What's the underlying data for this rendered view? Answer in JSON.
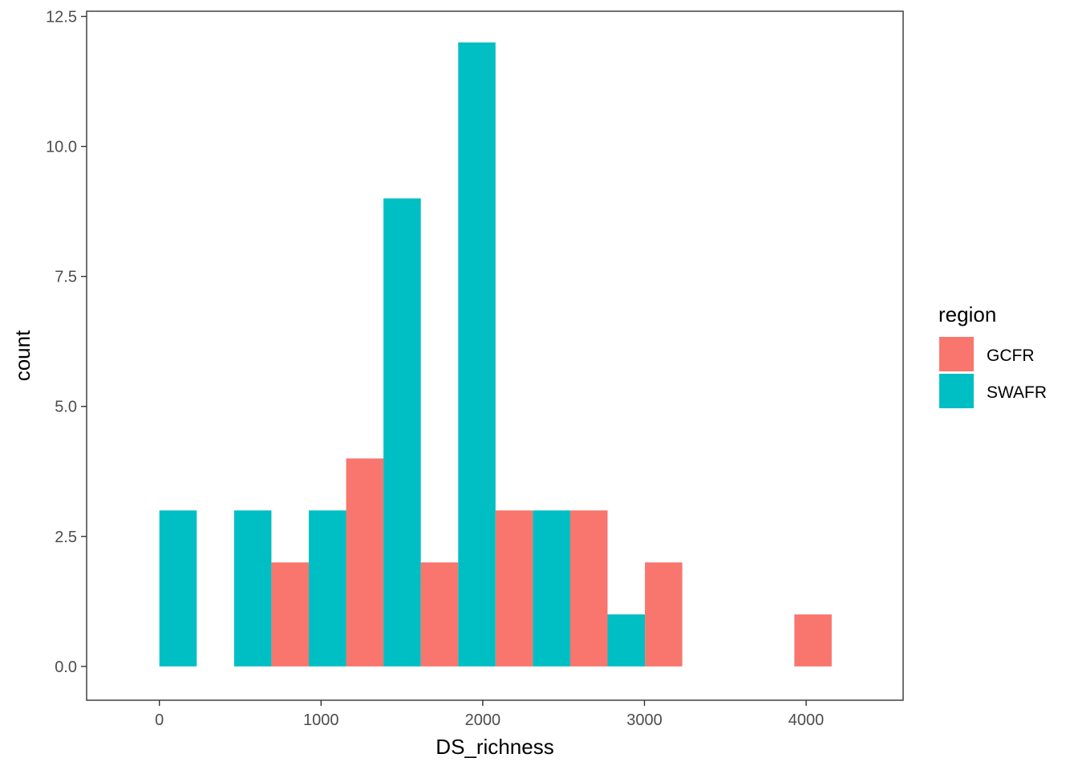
{
  "chart_data": {
    "type": "bar",
    "xlabel": "DS_richness",
    "ylabel": "count",
    "xlim": [
      -450,
      4600
    ],
    "ylim": [
      -0.65,
      12.6
    ],
    "x_ticks": [
      0,
      1000,
      2000,
      3000,
      4000
    ],
    "x_tick_labels": [
      "0",
      "1000",
      "2000",
      "3000",
      "4000"
    ],
    "y_ticks": [
      0,
      2.5,
      5,
      7.5,
      10,
      12.5
    ],
    "y_tick_labels": [
      "0.0",
      "2.5",
      "5.0",
      "7.5",
      "10.0",
      "12.5"
    ],
    "grid": false,
    "legend": {
      "title": "region",
      "position": "right",
      "entries": [
        {
          "label": "GCFR",
          "color": "#F8766D"
        },
        {
          "label": "SWAFR",
          "color": "#00BFC4"
        }
      ]
    },
    "bar_groups": [
      {
        "center": 0,
        "width": 462
      },
      {
        "center": 462,
        "width": 462
      },
      {
        "center": 924,
        "width": 462
      },
      {
        "center": 1386,
        "width": 462
      },
      {
        "center": 1848,
        "width": 462
      },
      {
        "center": 2310,
        "width": 462
      },
      {
        "center": 2772,
        "width": 462
      },
      {
        "center": 3234,
        "width": 462
      },
      {
        "center": 3696,
        "width": 462
      },
      {
        "center": 4158,
        "width": 462
      }
    ],
    "series": [
      {
        "name": "GCFR",
        "color": "#F8766D",
        "values": [
          0,
          0,
          2,
          4,
          2,
          3,
          3,
          2,
          0,
          1
        ]
      },
      {
        "name": "SWAFR",
        "color": "#00BFC4",
        "values": [
          3,
          3,
          3,
          9,
          12,
          3,
          1,
          0,
          0,
          0
        ]
      }
    ]
  }
}
